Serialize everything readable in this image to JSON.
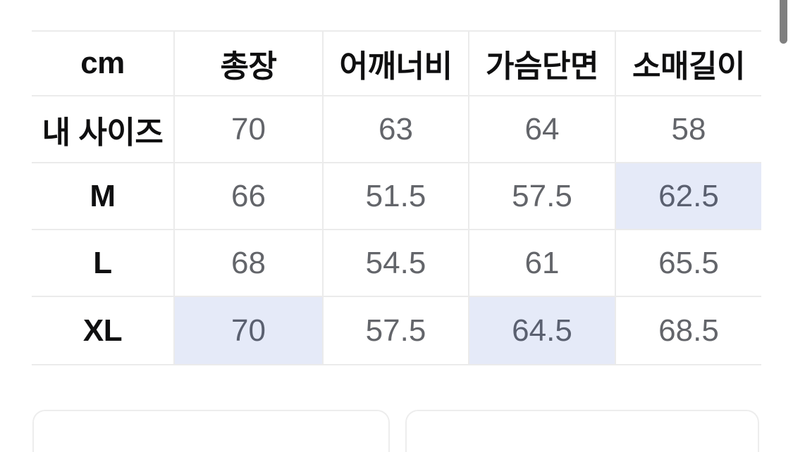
{
  "table": {
    "unit": "cm",
    "headers": [
      "총장",
      "어깨너비",
      "가슴단면",
      "소매길이"
    ],
    "rows": [
      {
        "label": "내 사이즈",
        "values": [
          "70",
          "63",
          "64",
          "58"
        ]
      },
      {
        "label": "M",
        "values": [
          "66",
          "51.5",
          "57.5",
          "62.5"
        ]
      },
      {
        "label": "L",
        "values": [
          "68",
          "54.5",
          "61",
          "65.5"
        ]
      },
      {
        "label": "XL",
        "values": [
          "70",
          "57.5",
          "64.5",
          "68.5"
        ]
      }
    ],
    "highlighted_cells": [
      {
        "row": "M",
        "column": "소매길이",
        "value": "62.5"
      },
      {
        "row": "XL",
        "column": "총장",
        "value": "70"
      },
      {
        "row": "XL",
        "column": "가슴단면",
        "value": "64.5"
      }
    ],
    "colors": {
      "highlight_background": "#e5eaf8",
      "border": "#ebebeb",
      "header_text": "#0f0f10",
      "value_text": "#63656a"
    }
  },
  "scrollbar": {
    "color": "#7f7f7f"
  }
}
